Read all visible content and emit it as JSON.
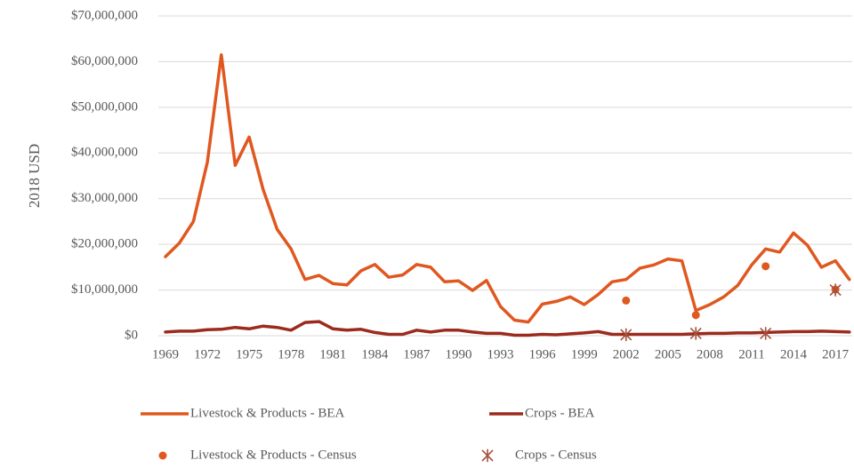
{
  "chart_data": {
    "type": "line",
    "y_label": "2018 USD",
    "categories": [
      "1969",
      null,
      null,
      "1972",
      null,
      null,
      "1975",
      null,
      null,
      "1978",
      null,
      null,
      "1981",
      null,
      null,
      "1984",
      null,
      null,
      "1987",
      null,
      null,
      "1990",
      null,
      null,
      "1993",
      null,
      null,
      "1996",
      null,
      null,
      "1999",
      null,
      null,
      "2002",
      null,
      null,
      "2005",
      null,
      null,
      "2008",
      null,
      null,
      "2011",
      null,
      null,
      "2014",
      null,
      null,
      "2017",
      null
    ],
    "ylim": [
      0,
      70000000
    ],
    "yticks": [
      {
        "value": 0,
        "label": "$0"
      },
      {
        "value": 10000000,
        "label": "$10,000,000"
      },
      {
        "value": 20000000,
        "label": "$20,000,000"
      },
      {
        "value": 30000000,
        "label": "$30,000,000"
      },
      {
        "value": 40000000,
        "label": "$40,000,000"
      },
      {
        "value": 50000000,
        "label": "$50,000,000"
      },
      {
        "value": 60000000,
        "label": "$60,000,000"
      },
      {
        "value": 70000000,
        "label": "$70,000,000"
      }
    ],
    "grid": true,
    "legend": "bottom",
    "series": [
      {
        "name": "Livestock & Products - BEA",
        "color": "#e0581f",
        "marker": "line",
        "values": [
          17300000,
          20300000,
          25000000,
          38000000,
          61500000,
          37300000,
          43500000,
          32000000,
          23300000,
          19000000,
          12300000,
          13200000,
          11400000,
          11100000,
          14200000,
          15600000,
          12800000,
          13300000,
          15600000,
          15000000,
          11800000,
          12000000,
          9900000,
          12100000,
          6400000,
          3400000,
          3000000,
          6900000,
          7500000,
          8500000,
          6800000,
          9000000,
          11800000,
          12300000,
          14800000,
          15500000,
          16800000,
          16400000,
          5500000,
          6800000,
          8500000,
          11000000,
          15500000,
          19000000,
          18300000,
          22500000,
          19800000,
          15000000,
          16400000,
          12300000
        ]
      },
      {
        "name": "Crops - BEA",
        "color": "#9c2b1e",
        "marker": "line",
        "values": [
          800000,
          1000000,
          1000000,
          1300000,
          1400000,
          1800000,
          1500000,
          2100000,
          1800000,
          1200000,
          2900000,
          3100000,
          1500000,
          1200000,
          1400000,
          700000,
          300000,
          300000,
          1200000,
          800000,
          1200000,
          1200000,
          800000,
          500000,
          500000,
          100000,
          100000,
          300000,
          200000,
          400000,
          600000,
          900000,
          300000,
          300000,
          300000,
          300000,
          300000,
          300000,
          400000,
          500000,
          500000,
          600000,
          600000,
          700000,
          800000,
          900000,
          900000,
          1000000,
          900000,
          800000
        ]
      },
      {
        "name": "Livestock & Products - Census",
        "color": "#e0581f",
        "marker": "circle",
        "values": [
          null,
          null,
          null,
          null,
          null,
          null,
          null,
          null,
          null,
          null,
          null,
          null,
          null,
          null,
          null,
          null,
          null,
          null,
          null,
          null,
          null,
          null,
          null,
          null,
          null,
          null,
          null,
          null,
          null,
          null,
          null,
          null,
          null,
          7700000,
          null,
          null,
          null,
          null,
          4500000,
          null,
          null,
          null,
          null,
          15200000,
          null,
          null,
          null,
          null,
          10100000,
          null
        ]
      },
      {
        "name": "Crops - Census",
        "color": "#a5513c",
        "marker": "asterisk",
        "values": [
          null,
          null,
          null,
          null,
          null,
          null,
          null,
          null,
          null,
          null,
          null,
          null,
          null,
          null,
          null,
          null,
          null,
          null,
          null,
          null,
          null,
          null,
          null,
          null,
          null,
          null,
          null,
          null,
          null,
          null,
          null,
          null,
          null,
          200000,
          null,
          null,
          null,
          null,
          500000,
          null,
          null,
          null,
          null,
          500000,
          null,
          null,
          null,
          null,
          10000000,
          null
        ]
      }
    ]
  }
}
